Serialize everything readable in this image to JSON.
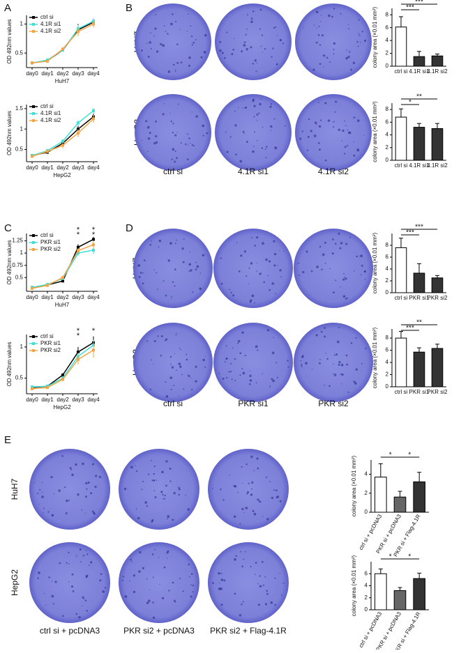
{
  "panel_labels": [
    "A",
    "B",
    "C",
    "D",
    "E"
  ],
  "plates": [
    {
      "rows": [
        "HuH7",
        "HepG2"
      ],
      "columns": [
        "ctrl si",
        "4.1R si1",
        "4.1R si2"
      ]
    },
    {
      "rows": [
        "HuH7",
        "HepG2"
      ],
      "columns": [
        "ctrl si",
        "PKR si1",
        "PKR si2"
      ]
    },
    {
      "rows": [
        "HuH7",
        "HepG2"
      ],
      "columns": [
        "ctrl si + pcDNA3",
        "PKR si2 + pcDNA3",
        "PKR si2 + Flag-4.1R"
      ]
    }
  ],
  "chart_data": [
    {
      "type": "line",
      "ylabel": "OD 492nm values",
      "xlabel": "HuH7",
      "categories": [
        "day0",
        "day1",
        "day2",
        "day3",
        "day4"
      ],
      "ylim": [
        0.25,
        1.15
      ],
      "yticks": [
        0.5,
        1
      ],
      "series": [
        {
          "name": "ctrl si",
          "color": "#000000",
          "values": [
            0.33,
            0.37,
            0.55,
            0.9,
            1.03
          ],
          "errors": [
            0.01,
            0.03,
            0.03,
            0.1,
            0.06
          ]
        },
        {
          "name": "4.1R si1",
          "color": "#3fe0d8",
          "values": [
            0.33,
            0.38,
            0.55,
            0.92,
            1.05
          ],
          "errors": [
            0.01,
            0.03,
            0.03,
            0.06,
            0.05
          ]
        },
        {
          "name": "4.1R si2",
          "color": "#f5a442",
          "values": [
            0.33,
            0.36,
            0.57,
            0.87,
            1.0
          ],
          "errors": [
            0.01,
            0.02,
            0.03,
            0.08,
            0.06
          ]
        }
      ]
    },
    {
      "type": "line",
      "ylabel": "OD 492nm values",
      "xlabel": "HepG2",
      "categories": [
        "day0",
        "day1",
        "day2",
        "day3",
        "day4"
      ],
      "ylim": [
        0.2,
        1.6
      ],
      "yticks": [
        0.5,
        1,
        1.5
      ],
      "series": [
        {
          "name": "ctrl si",
          "color": "#000000",
          "values": [
            0.35,
            0.43,
            0.65,
            1.0,
            1.3
          ],
          "errors": [
            0.02,
            0.03,
            0.05,
            0.08,
            0.08
          ]
        },
        {
          "name": "4.1R si1",
          "color": "#3fe0d8",
          "values": [
            0.35,
            0.47,
            0.7,
            1.15,
            1.45
          ],
          "errors": [
            0.02,
            0.03,
            0.05,
            0.06,
            0.06
          ]
        },
        {
          "name": "4.1R si2",
          "color": "#f5a442",
          "values": [
            0.33,
            0.45,
            0.6,
            0.9,
            1.25
          ],
          "errors": [
            0.02,
            0.03,
            0.07,
            0.1,
            0.1
          ]
        }
      ]
    },
    {
      "type": "line",
      "ylabel": "OD 492nm values",
      "xlabel": "HuH7",
      "categories": [
        "day0",
        "day1",
        "day2",
        "day3",
        "day4"
      ],
      "ylim": [
        0.22,
        1.4
      ],
      "yticks": [
        0.5,
        0.75,
        1,
        1.25
      ],
      "series": [
        {
          "name": "ctrl si",
          "color": "#000000",
          "values": [
            0.3,
            0.35,
            0.43,
            1.12,
            1.28
          ],
          "errors": [
            0.02,
            0.03,
            0.03,
            0.06,
            0.05
          ]
        },
        {
          "name": "PKR si1",
          "color": "#3fe0d8",
          "values": [
            0.3,
            0.36,
            0.48,
            1.0,
            1.06
          ],
          "errors": [
            0.02,
            0.03,
            0.03,
            0.06,
            0.08
          ]
        },
        {
          "name": "PKR si2",
          "color": "#f5a442",
          "values": [
            0.28,
            0.34,
            0.5,
            1.05,
            1.17
          ],
          "errors": [
            0.02,
            0.03,
            0.03,
            0.05,
            0.08
          ]
        }
      ],
      "annotations": [
        {
          "text": "*",
          "color": "#3fe0d8",
          "x": "day3"
        },
        {
          "text": "*",
          "color": "#f5a442",
          "x": "day3"
        },
        {
          "text": "*",
          "color": "#3fe0d8",
          "x": "day4"
        },
        {
          "text": "*",
          "color": "#f5a442",
          "x": "day4"
        }
      ]
    },
    {
      "type": "line",
      "ylabel": "OD 492nm values",
      "xlabel": "HepG2",
      "categories": [
        "day0",
        "day1",
        "day2",
        "day3",
        "day4"
      ],
      "ylim": [
        0.25,
        1.2
      ],
      "yticks": [
        0.5,
        1
      ],
      "series": [
        {
          "name": "ctrl si",
          "color": "#000000",
          "values": [
            0.35,
            0.37,
            0.55,
            0.92,
            1.07
          ],
          "errors": [
            0.02,
            0.02,
            0.03,
            0.08,
            0.1
          ]
        },
        {
          "name": "PKR si1",
          "color": "#3fe0d8",
          "values": [
            0.36,
            0.37,
            0.5,
            0.85,
            1.03
          ],
          "errors": [
            0.02,
            0.02,
            0.03,
            0.06,
            0.08
          ]
        },
        {
          "name": "PKR si2",
          "color": "#f5a442",
          "values": [
            0.33,
            0.35,
            0.48,
            0.8,
            0.95
          ],
          "errors": [
            0.02,
            0.02,
            0.03,
            0.08,
            0.12
          ]
        }
      ],
      "annotations": [
        {
          "text": "*",
          "color": "#3fe0d8",
          "x": "day3"
        },
        {
          "text": "*",
          "color": "#f5a442",
          "x": "day3"
        },
        {
          "text": "*",
          "color": "#f5a442",
          "x": "day4"
        }
      ]
    },
    {
      "type": "bar",
      "ylabel": "colony area (×0.01 mm²)",
      "categories": [
        "ctrl si",
        "4.1R si1",
        "4.1R si2"
      ],
      "values": [
        6.1,
        1.5,
        1.6
      ],
      "errors": [
        1.6,
        0.8,
        0.3
      ],
      "colors": [
        "#ffffff",
        "#333333",
        "#333333"
      ],
      "ylim": [
        0,
        9
      ],
      "yticks": [
        0,
        2,
        4,
        6,
        8
      ],
      "annotations": [
        {
          "text": "***",
          "from": "ctrl si",
          "to": "4.1R si1"
        },
        {
          "text": "***",
          "from": "ctrl si",
          "to": "4.1R si2"
        }
      ]
    },
    {
      "type": "bar",
      "ylabel": "colony area (×0.01 mm²)",
      "categories": [
        "ctrl si",
        "4.1R si1",
        "4.1R si2"
      ],
      "values": [
        6.8,
        5.2,
        5.0
      ],
      "errors": [
        1.3,
        0.6,
        0.8
      ],
      "colors": [
        "#ffffff",
        "#333333",
        "#333333"
      ],
      "ylim": [
        0,
        9
      ],
      "yticks": [
        0,
        2,
        4,
        6,
        8
      ],
      "annotations": [
        {
          "text": "*",
          "from": "ctrl si",
          "to": "4.1R si1"
        },
        {
          "text": "**",
          "from": "ctrl si",
          "to": "4.1R si2"
        }
      ]
    },
    {
      "type": "bar",
      "ylabel": "colony area (×0.01 mm²)",
      "categories": [
        "ctrl si",
        "PKR si1",
        "PKR si2"
      ],
      "values": [
        7.6,
        3.3,
        2.5
      ],
      "errors": [
        1.6,
        1.6,
        0.4
      ],
      "colors": [
        "#ffffff",
        "#333333",
        "#333333"
      ],
      "ylim": [
        0,
        10
      ],
      "yticks": [
        0,
        2,
        4,
        6,
        8
      ],
      "annotations": [
        {
          "text": "***",
          "from": "ctrl si",
          "to": "PKR si1"
        },
        {
          "text": "***",
          "from": "ctrl si",
          "to": "PKR si2"
        }
      ]
    },
    {
      "type": "bar",
      "ylabel": "colony area (×0.01 mm²)",
      "categories": [
        "ctrl si",
        "PKR si1",
        "PKR si2"
      ],
      "values": [
        8.0,
        5.7,
        6.3
      ],
      "errors": [
        1.1,
        0.7,
        0.7
      ],
      "colors": [
        "#ffffff",
        "#333333",
        "#333333"
      ],
      "ylim": [
        0,
        9.5
      ],
      "yticks": [
        0,
        2,
        4,
        6,
        8
      ],
      "annotations": [
        {
          "text": "***",
          "from": "ctrl si",
          "to": "PKR si1"
        },
        {
          "text": "**",
          "from": "ctrl si",
          "to": "PKR si2"
        }
      ]
    },
    {
      "type": "bar",
      "ylabel": "colony area (×0.01 mm²)",
      "categories": [
        "ctrl si + pcDNA3",
        "PKR si + pcDNA3",
        "PKR si + Flag-4.1R"
      ],
      "values": [
        3.7,
        1.6,
        3.2
      ],
      "errors": [
        1.4,
        0.6,
        1.0
      ],
      "colors": [
        "#ffffff",
        "#666666",
        "#333333"
      ],
      "ylim": [
        0,
        5.5
      ],
      "yticks": [
        0,
        2,
        4
      ],
      "annotations": [
        {
          "text": "*",
          "from": "ctrl si + pcDNA3",
          "to": "PKR si + pcDNA3"
        },
        {
          "text": "*",
          "from": "PKR si + pcDNA3",
          "to": "PKR si + Flag-4.1R"
        }
      ]
    },
    {
      "type": "bar",
      "ylabel": "colony area (×0.01 mm²)",
      "categories": [
        "ctrl si + pcDNA3",
        "PKR si + pcDNA3",
        "PKR si + Flag-4.1R"
      ],
      "values": [
        6.0,
        3.2,
        5.2
      ],
      "errors": [
        0.8,
        0.5,
        0.9
      ],
      "colors": [
        "#ffffff",
        "#666666",
        "#333333"
      ],
      "ylim": [
        0,
        8
      ],
      "yticks": [
        0,
        2,
        4,
        6
      ],
      "annotations": [
        {
          "text": "*",
          "from": "ctrl si + pcDNA3",
          "to": "PKR si + pcDNA3"
        },
        {
          "text": "*",
          "from": "PKR si + pcDNA3",
          "to": "PKR si + Flag-4.1R"
        }
      ]
    }
  ]
}
